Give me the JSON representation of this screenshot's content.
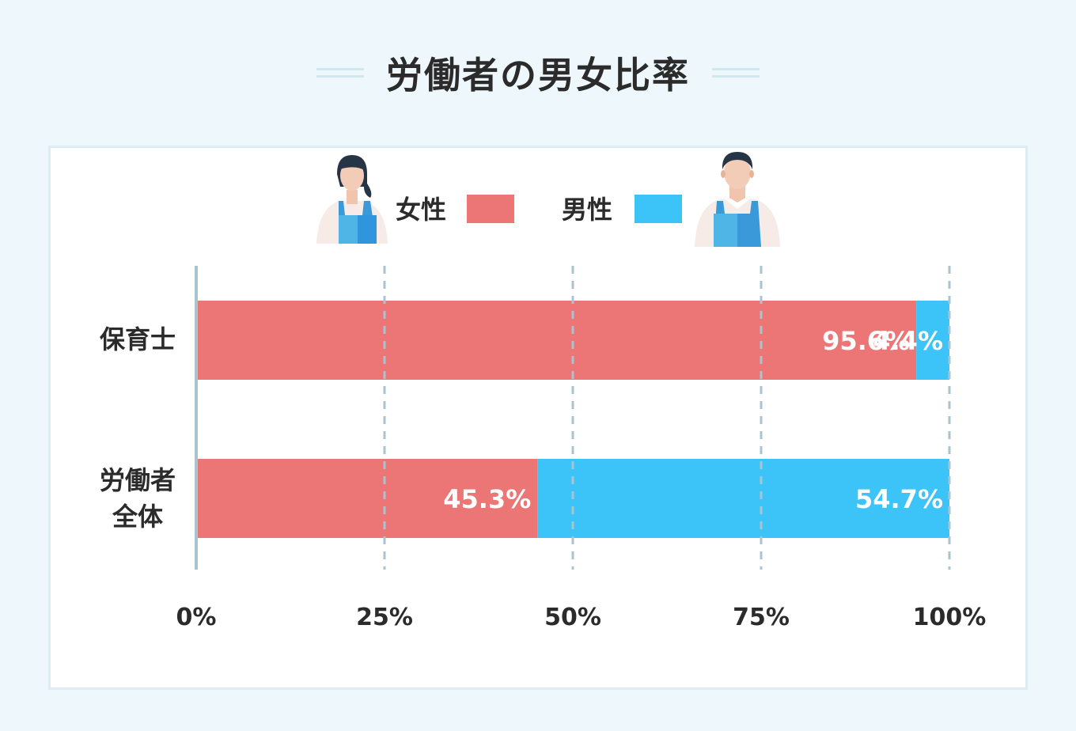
{
  "title": "労働者の男女比率",
  "legend": {
    "female": {
      "label": "女性",
      "color": "#ec7676",
      "icon": "female-worker-icon"
    },
    "male": {
      "label": "男性",
      "color": "#3cc3f8",
      "icon": "male-worker-icon"
    }
  },
  "chart_data": {
    "type": "bar",
    "orientation": "horizontal",
    "stacked": true,
    "categories": [
      "保育士",
      "労働者全体"
    ],
    "category_display": [
      [
        "保育士"
      ],
      [
        "労働者",
        "全体"
      ]
    ],
    "series": [
      {
        "name": "女性",
        "values": [
          95.6,
          45.3
        ],
        "labels": [
          "95.6%",
          "45.3%"
        ],
        "color": "#ec7676"
      },
      {
        "name": "男性",
        "values": [
          4.4,
          54.7
        ],
        "labels": [
          "4.4%",
          "54.7%"
        ],
        "color": "#3cc3f8"
      }
    ],
    "xlim": [
      0,
      100
    ],
    "x_ticks": [
      0,
      25,
      50,
      75,
      100
    ],
    "x_tick_labels": [
      "0%",
      "25%",
      "50%",
      "75%",
      "100%"
    ],
    "grid": true,
    "legend_position": "top-center"
  }
}
